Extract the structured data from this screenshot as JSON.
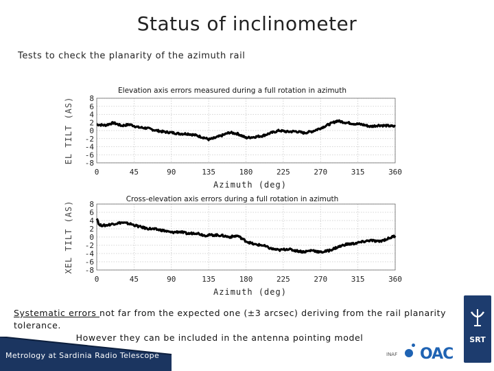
{
  "slide": {
    "title": "Status of inclinometer",
    "subtitle": "Tests to check the planarity of the azimuth rail",
    "footnote_line1_underlined": "Systematic errors ",
    "footnote_line1_rest": "not far from the expected one (±3 arcsec) deriving from the rail planarity tolerance.",
    "footnote_line2": "However they can be included in the antenna pointing model",
    "footer_text": "Metrology at Sardinia Radio Telescope",
    "logo_oac": "OAC",
    "logo_inaf": "INAF",
    "logo_srt": "SRT",
    "colors": {
      "footer": "#1b3560",
      "accent": "#1f63b3",
      "data": "#000000"
    }
  },
  "chart_data": [
    {
      "type": "line",
      "title": "Elevation  axis errors measured during  a full rotation in azimuth",
      "xlabel": "Azimuth (deg)",
      "ylabel": "EL TILT (AS)",
      "xlim": [
        0,
        360
      ],
      "ylim": [
        -8,
        8
      ],
      "xticks": [
        0,
        45,
        90,
        135,
        180,
        225,
        270,
        315,
        360
      ],
      "yticks": [
        8,
        6,
        4,
        2,
        0,
        -2,
        -4,
        -6,
        -8
      ],
      "ytick_labels": [
        "8",
        "6",
        "4",
        "2",
        "0",
        "-2",
        "-4",
        "-6",
        "-8"
      ],
      "grid": true,
      "series": [
        {
          "name": "EL tilt",
          "x": [
            0,
            10,
            20,
            30,
            40,
            50,
            60,
            70,
            80,
            90,
            100,
            110,
            120,
            130,
            135,
            140,
            150,
            160,
            170,
            180,
            190,
            200,
            210,
            220,
            230,
            240,
            250,
            260,
            270,
            280,
            290,
            300,
            310,
            320,
            330,
            340,
            350,
            360
          ],
          "y": [
            1.5,
            1.3,
            1.9,
            1.2,
            1.5,
            0.8,
            0.6,
            0.1,
            -0.3,
            -0.5,
            -0.8,
            -0.8,
            -1.2,
            -1.8,
            -2.2,
            -2.0,
            -1.3,
            -0.5,
            -0.8,
            -1.8,
            -1.6,
            -1.3,
            -0.6,
            0.0,
            -0.3,
            -0.2,
            -0.6,
            -0.2,
            0.6,
            1.5,
            2.4,
            2.0,
            1.7,
            1.5,
            1.0,
            1.3,
            1.2,
            1.0
          ]
        }
      ]
    },
    {
      "type": "line",
      "title": "Cross-elevation axis errors during a full rotation in azimuth",
      "xlabel": "Azimuth (deg)",
      "ylabel": "XEL TILT (AS)",
      "xlim": [
        0,
        360
      ],
      "ylim": [
        -8,
        8
      ],
      "xticks": [
        0,
        45,
        90,
        135,
        180,
        225,
        270,
        315,
        360
      ],
      "yticks": [
        8,
        6,
        4,
        2,
        0,
        -2,
        -4,
        -6,
        -8
      ],
      "ytick_labels": [
        "8",
        "6",
        "4",
        "2",
        "0",
        "-2",
        "-4",
        "-6",
        "-8"
      ],
      "grid": true,
      "series": [
        {
          "name": "XEL tilt",
          "x": [
            0,
            3,
            10,
            20,
            30,
            40,
            50,
            60,
            70,
            80,
            90,
            100,
            110,
            120,
            130,
            140,
            150,
            160,
            170,
            180,
            190,
            200,
            210,
            220,
            230,
            240,
            250,
            260,
            270,
            280,
            290,
            300,
            310,
            320,
            330,
            340,
            350,
            360
          ],
          "y": [
            4.7,
            2.9,
            2.8,
            3.2,
            3.5,
            3.2,
            2.6,
            2.1,
            1.9,
            1.6,
            1.1,
            1.3,
            0.8,
            1.0,
            0.4,
            0.5,
            0.4,
            0.0,
            0.3,
            -1.0,
            -1.8,
            -2.0,
            -2.8,
            -3.2,
            -2.9,
            -3.3,
            -3.6,
            -3.2,
            -3.7,
            -3.3,
            -2.5,
            -1.8,
            -1.6,
            -1.2,
            -0.8,
            -1.1,
            -0.5,
            0.3
          ]
        }
      ]
    }
  ]
}
